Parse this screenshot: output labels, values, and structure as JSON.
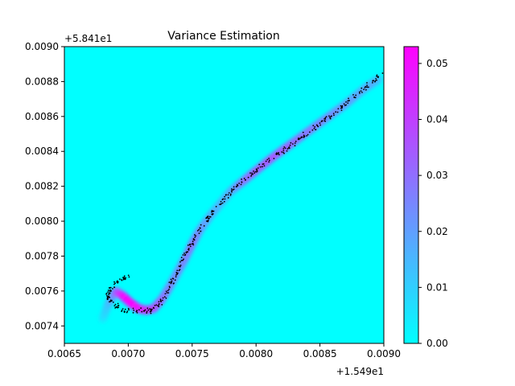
{
  "chart_data": {
    "type": "scatter",
    "title": "Variance Estimation",
    "xlabel": "",
    "ylabel": "",
    "x_offset_label": "+1.549e1",
    "y_offset_label": "+5.841e1",
    "xlim": [
      0.0065,
      0.009
    ],
    "ylim": [
      0.0073,
      0.009
    ],
    "x_ticks": [
      "0.0065",
      "0.0070",
      "0.0075",
      "0.0080",
      "0.0085",
      "0.0090"
    ],
    "x_tick_values": [
      0.0065,
      0.007,
      0.0075,
      0.008,
      0.0085,
      0.009
    ],
    "y_ticks": [
      "0.0074",
      "0.0076",
      "0.0078",
      "0.0080",
      "0.0082",
      "0.0084",
      "0.0086",
      "0.0088",
      "0.0090"
    ],
    "y_tick_values": [
      0.0074,
      0.0076,
      0.0078,
      0.008,
      0.0082,
      0.0084,
      0.0086,
      0.0088,
      0.009
    ],
    "colorbar": {
      "range": [
        0.0,
        0.053
      ],
      "ticks": [
        "0.00",
        "0.01",
        "0.02",
        "0.03",
        "0.04",
        "0.05"
      ],
      "tick_values": [
        0.0,
        0.01,
        0.02,
        0.03,
        0.04,
        0.05
      ],
      "colormap": "cool",
      "color_low": "#00ffff",
      "color_high": "#ff00ff"
    },
    "background_color": "#00ffff",
    "point_color": "#000000",
    "trajectory": [
      [
        0.00701,
        0.00769
      ],
      [
        0.00693,
        0.00766
      ],
      [
        0.00686,
        0.00761
      ],
      [
        0.00684,
        0.00757
      ],
      [
        0.00688,
        0.00752
      ],
      [
        0.00697,
        0.00749
      ],
      [
        0.00708,
        0.00748
      ],
      [
        0.00718,
        0.00749
      ],
      [
        0.00725,
        0.00753
      ],
      [
        0.00731,
        0.0076
      ],
      [
        0.00736,
        0.00768
      ],
      [
        0.00741,
        0.00775
      ],
      [
        0.00746,
        0.00782
      ],
      [
        0.00751,
        0.00789
      ],
      [
        0.00757,
        0.00796
      ],
      [
        0.00764,
        0.00803
      ],
      [
        0.00771,
        0.0081
      ],
      [
        0.00779,
        0.00816
      ],
      [
        0.00788,
        0.00822
      ],
      [
        0.00798,
        0.00828
      ],
      [
        0.00808,
        0.00834
      ],
      [
        0.00818,
        0.00839
      ],
      [
        0.00828,
        0.00844
      ],
      [
        0.00838,
        0.00849
      ],
      [
        0.00848,
        0.00855
      ],
      [
        0.00858,
        0.0086
      ],
      [
        0.00868,
        0.00866
      ],
      [
        0.00878,
        0.00872
      ],
      [
        0.00888,
        0.00878
      ],
      [
        0.00898,
        0.00884
      ]
    ],
    "variance_band": [
      {
        "x": 0.0068,
        "y": 0.00744,
        "v": 0.006
      },
      {
        "x": 0.00684,
        "y": 0.00752,
        "v": 0.012
      },
      {
        "x": 0.0069,
        "y": 0.0076,
        "v": 0.03
      },
      {
        "x": 0.00696,
        "y": 0.00757,
        "v": 0.05
      },
      {
        "x": 0.00702,
        "y": 0.00753,
        "v": 0.053
      },
      {
        "x": 0.00708,
        "y": 0.0075,
        "v": 0.05
      },
      {
        "x": 0.00714,
        "y": 0.00749,
        "v": 0.044
      },
      {
        "x": 0.0072,
        "y": 0.0075,
        "v": 0.038
      },
      {
        "x": 0.00726,
        "y": 0.00755,
        "v": 0.032
      },
      {
        "x": 0.00732,
        "y": 0.00762,
        "v": 0.026
      },
      {
        "x": 0.00738,
        "y": 0.0077,
        "v": 0.024
      },
      {
        "x": 0.00744,
        "y": 0.00778,
        "v": 0.026
      },
      {
        "x": 0.0075,
        "y": 0.00787,
        "v": 0.03
      },
      {
        "x": 0.00756,
        "y": 0.00795,
        "v": 0.024
      },
      {
        "x": 0.00764,
        "y": 0.00803,
        "v": 0.018
      },
      {
        "x": 0.00772,
        "y": 0.0081,
        "v": 0.016
      },
      {
        "x": 0.0078,
        "y": 0.00817,
        "v": 0.018
      },
      {
        "x": 0.0079,
        "y": 0.00823,
        "v": 0.03
      },
      {
        "x": 0.008,
        "y": 0.00829,
        "v": 0.035
      },
      {
        "x": 0.00812,
        "y": 0.00836,
        "v": 0.038
      },
      {
        "x": 0.00825,
        "y": 0.00843,
        "v": 0.036
      },
      {
        "x": 0.0084,
        "y": 0.00851,
        "v": 0.032
      },
      {
        "x": 0.00855,
        "y": 0.00859,
        "v": 0.028
      },
      {
        "x": 0.0087,
        "y": 0.00867,
        "v": 0.024
      },
      {
        "x": 0.00885,
        "y": 0.00876,
        "v": 0.02
      },
      {
        "x": 0.00897,
        "y": 0.00882,
        "v": 0.016
      }
    ],
    "scatter_points_per_segment": 14,
    "scatter_spread": 2.2e-05
  }
}
